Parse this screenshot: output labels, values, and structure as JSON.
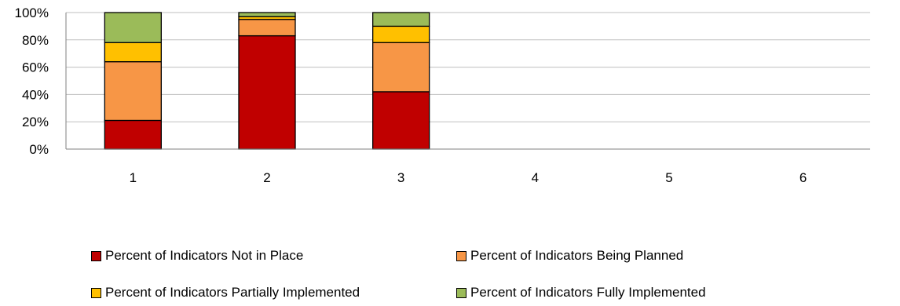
{
  "chart_data": {
    "type": "bar",
    "stacked": true,
    "percent": true,
    "categories": [
      "1",
      "2",
      "3",
      "4",
      "5",
      "6"
    ],
    "series": [
      {
        "name": "Percent of Indicators Not in Place",
        "color": "#c00000",
        "values": [
          21,
          83,
          42,
          null,
          null,
          null
        ]
      },
      {
        "name": "Percent of Indicators Being Planned",
        "color": "#f79646",
        "values": [
          43,
          12,
          36,
          null,
          null,
          null
        ]
      },
      {
        "name": "Percent of Indicators Partially Implemented",
        "color": "#ffc000",
        "values": [
          14,
          2,
          12,
          null,
          null,
          null
        ]
      },
      {
        "name": "Percent of Indicators Fully Implemented",
        "color": "#9bbb59",
        "values": [
          22,
          3,
          10,
          null,
          null,
          null
        ]
      }
    ],
    "ylim": [
      0,
      100
    ],
    "yticks": [
      "0%",
      "20%",
      "40%",
      "60%",
      "80%",
      "100%"
    ],
    "grid": true,
    "legend_position": "bottom"
  }
}
